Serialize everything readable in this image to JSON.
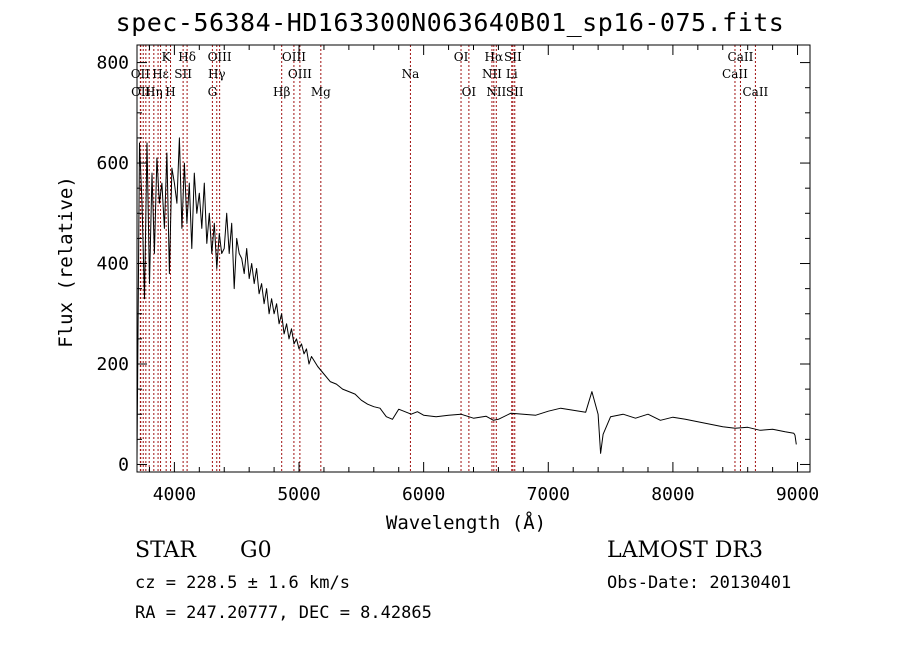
{
  "title": "spec-56384-HD163300N063640B01_sp16-075.fits",
  "info": {
    "class": "STAR",
    "subclass": "G0",
    "survey": "LAMOST DR3",
    "cz": "cz = 228.5 ± 1.6 km/s",
    "obs_date": "Obs-Date: 20130401",
    "radec": "RA = 247.20777, DEC =   8.42865"
  },
  "chart_data": {
    "type": "line",
    "title": "spec-56384-HD163300N063640B01_sp16-075.fits",
    "xlabel": "Wavelength (Å)",
    "ylabel": "Flux (relative)",
    "xlim": [
      3700,
      9100
    ],
    "ylim": [
      -15,
      835
    ],
    "xticks": [
      4000,
      5000,
      6000,
      7000,
      8000,
      9000
    ],
    "yticks": [
      0,
      200,
      400,
      600,
      800
    ],
    "minor_x_step": 200,
    "minor_y_step": 50,
    "line_color": "#000000",
    "marker_color": "#a01010",
    "series": [
      {
        "name": "flux",
        "x": [
          3700,
          3720,
          3740,
          3760,
          3780,
          3800,
          3820,
          3840,
          3860,
          3880,
          3900,
          3920,
          3940,
          3960,
          3980,
          4000,
          4020,
          4040,
          4060,
          4080,
          4100,
          4120,
          4140,
          4160,
          4180,
          4200,
          4220,
          4240,
          4260,
          4280,
          4300,
          4320,
          4340,
          4360,
          4380,
          4400,
          4420,
          4440,
          4460,
          4480,
          4500,
          4520,
          4540,
          4560,
          4580,
          4600,
          4620,
          4640,
          4660,
          4680,
          4700,
          4720,
          4740,
          4760,
          4780,
          4800,
          4820,
          4840,
          4860,
          4880,
          4900,
          4920,
          4940,
          4960,
          4980,
          5000,
          5020,
          5040,
          5060,
          5080,
          5100,
          5150,
          5200,
          5250,
          5300,
          5350,
          5400,
          5450,
          5500,
          5550,
          5600,
          5650,
          5700,
          5750,
          5800,
          5850,
          5900,
          5950,
          6000,
          6100,
          6200,
          6300,
          6400,
          6500,
          6560,
          6600,
          6700,
          6800,
          6900,
          7000,
          7100,
          7200,
          7300,
          7350,
          7400,
          7420,
          7440,
          7500,
          7600,
          7700,
          7800,
          7900,
          8000,
          8100,
          8200,
          8300,
          8400,
          8500,
          8600,
          8700,
          8800,
          8900,
          8970,
          8980,
          8990
        ],
        "y": [
          10,
          640,
          520,
          330,
          640,
          360,
          580,
          420,
          610,
          520,
          560,
          470,
          620,
          380,
          590,
          560,
          520,
          650,
          470,
          600,
          480,
          560,
          430,
          580,
          500,
          540,
          470,
          560,
          440,
          500,
          420,
          480,
          390,
          460,
          420,
          430,
          500,
          420,
          480,
          350,
          450,
          420,
          410,
          380,
          430,
          370,
          400,
          360,
          390,
          340,
          360,
          320,
          350,
          300,
          330,
          300,
          320,
          280,
          300,
          260,
          280,
          250,
          270,
          240,
          250,
          230,
          240,
          220,
          230,
          200,
          215,
          195,
          180,
          165,
          160,
          150,
          145,
          140,
          128,
          120,
          115,
          112,
          95,
          90,
          110,
          105,
          100,
          105,
          98,
          95,
          98,
          100,
          92,
          96,
          88,
          90,
          102,
          100,
          98,
          106,
          112,
          108,
          104,
          145,
          100,
          22,
          60,
          95,
          100,
          92,
          100,
          88,
          94,
          90,
          85,
          80,
          75,
          72,
          74,
          68,
          70,
          65,
          62,
          58,
          40
        ]
      }
    ],
    "line_markers": [
      {
        "wavelength": 3727,
        "label": "OII",
        "row": 2
      },
      {
        "wavelength": 3730,
        "label": "OII",
        "row": 3
      },
      {
        "wavelength": 3750,
        "label": "",
        "row": 3
      },
      {
        "wavelength": 3771,
        "label": "",
        "row": 3
      },
      {
        "wavelength": 3798,
        "label": "",
        "row": 3
      },
      {
        "wavelength": 3835,
        "label": "Hη",
        "row": 3
      },
      {
        "wavelength": 3869,
        "label": "",
        "row": 2
      },
      {
        "wavelength": 3889,
        "label": "Hε",
        "row": 2
      },
      {
        "wavelength": 3934,
        "label": "K",
        "row": 1
      },
      {
        "wavelength": 3969,
        "label": "H",
        "row": 3
      },
      {
        "wavelength": 4070,
        "label": "SII",
        "row": 2
      },
      {
        "wavelength": 4102,
        "label": "Hδ",
        "row": 1
      },
      {
        "wavelength": 4305,
        "label": "G",
        "row": 3
      },
      {
        "wavelength": 4340,
        "label": "Hγ",
        "row": 2
      },
      {
        "wavelength": 4363,
        "label": "OIII",
        "row": 1
      },
      {
        "wavelength": 4861,
        "label": "Hβ",
        "row": 3
      },
      {
        "wavelength": 4959,
        "label": "OIII",
        "row": 1
      },
      {
        "wavelength": 5007,
        "label": "OIII",
        "row": 2
      },
      {
        "wavelength": 5175,
        "label": "Mg",
        "row": 3
      },
      {
        "wavelength": 5894,
        "label": "Na",
        "row": 2
      },
      {
        "wavelength": 6300,
        "label": "OI",
        "row": 1
      },
      {
        "wavelength": 6363,
        "label": "OI",
        "row": 3
      },
      {
        "wavelength": 6548,
        "label": "NII",
        "row": 2
      },
      {
        "wavelength": 6563,
        "label": "Hα",
        "row": 1
      },
      {
        "wavelength": 6583,
        "label": "NII",
        "row": 3
      },
      {
        "wavelength": 6707,
        "label": "Li",
        "row": 2
      },
      {
        "wavelength": 6716,
        "label": "SII",
        "row": 1
      },
      {
        "wavelength": 6731,
        "label": "SII",
        "row": 3
      },
      {
        "wavelength": 8498,
        "label": "CaII",
        "row": 2
      },
      {
        "wavelength": 8542,
        "label": "CaII",
        "row": 1
      },
      {
        "wavelength": 8662,
        "label": "CaII",
        "row": 3
      }
    ]
  }
}
